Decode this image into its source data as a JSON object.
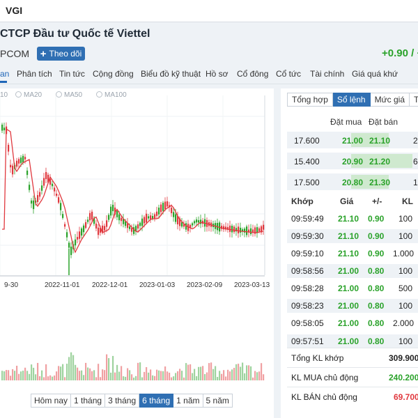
{
  "header": {
    "ticker": "VGI",
    "company_name": "CTCP Đầu tư Quốc tế Viettel",
    "exchange": "PCOM",
    "follow_label": "Theo dõi",
    "change": "+0.90 / +"
  },
  "nav_tabs": [
    "an",
    "Phân tích",
    "Tin tức",
    "Cộng đồng",
    "Biểu đồ kỹ thuật",
    "Hồ sơ",
    "Cổ đông",
    "Cổ tức",
    "Tài chính",
    "Giá quá khứ"
  ],
  "ma_legend": [
    "10",
    "MA20",
    "MA50",
    "MA100"
  ],
  "chart_data": {
    "type": "candlestick",
    "x_ticks": [
      "9-30",
      "2022-11-01",
      "2022-12-01",
      "2023-01-03",
      "2023-02-09",
      "2023-03-13"
    ],
    "volume_panel": true,
    "up_color": "#2aa22a",
    "down_color": "#e0383e",
    "ma_color": "#e0383e"
  },
  "range_buttons": [
    "Hôm nay",
    "1 tháng",
    "3 tháng",
    "6 tháng",
    "1 năm",
    "5 năm"
  ],
  "range_active": "6 tháng",
  "right_tabs": [
    "Tổng hợp",
    "Sổ lệnh",
    "Mức giá",
    "Thố"
  ],
  "right_tab_active": "Sổ lệnh",
  "orderbook": {
    "buy_label": "Đặt mua",
    "sell_label": "Đặt bán",
    "rows": [
      {
        "vol_buy": "17.600",
        "bid": "21.00",
        "ask": "21.10",
        "vol_sell": "2"
      },
      {
        "vol_buy": "15.400",
        "bid": "20.90",
        "ask": "21.20",
        "vol_sell": "6"
      },
      {
        "vol_buy": "17.500",
        "bid": "20.80",
        "ask": "21.30",
        "vol_sell": "1"
      }
    ]
  },
  "trades": {
    "headers": [
      "Khớp",
      "Giá",
      "+/-",
      "KL"
    ],
    "rows": [
      {
        "time": "09:59:49",
        "price": "21.10",
        "chg": "0.90",
        "vol": "100"
      },
      {
        "time": "09:59:30",
        "price": "21.10",
        "chg": "0.90",
        "vol": "100"
      },
      {
        "time": "09:59:10",
        "price": "21.10",
        "chg": "0.90",
        "vol": "1.000"
      },
      {
        "time": "09:58:56",
        "price": "21.00",
        "chg": "0.80",
        "vol": "100"
      },
      {
        "time": "09:58:28",
        "price": "21.00",
        "chg": "0.80",
        "vol": "500"
      },
      {
        "time": "09:58:23",
        "price": "21.00",
        "chg": "0.80",
        "vol": "100"
      },
      {
        "time": "09:58:05",
        "price": "21.00",
        "chg": "0.80",
        "vol": "2.000"
      },
      {
        "time": "09:57:51",
        "price": "21.00",
        "chg": "0.80",
        "vol": "100"
      }
    ]
  },
  "summary": [
    {
      "label": "Tổng KL khớp",
      "value": "309.900"
    },
    {
      "label": "KL MUA chủ động",
      "value": "240.200"
    },
    {
      "label": "KL BÁN chủ động",
      "value": "69.700"
    }
  ]
}
